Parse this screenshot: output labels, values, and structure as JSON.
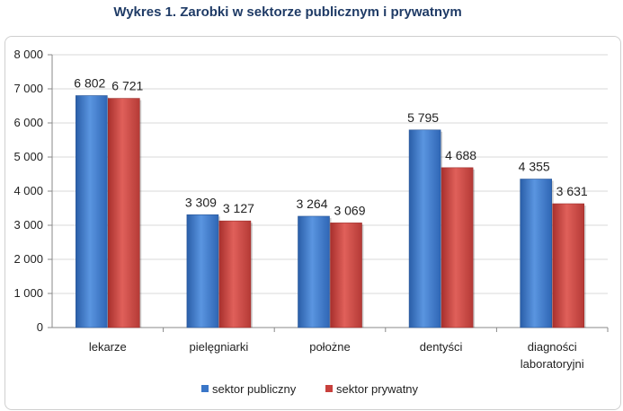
{
  "chart_data": {
    "type": "bar",
    "title": "Wykres 1. Zarobki w sektorze publicznym i prywatnym",
    "categories": [
      [
        "lekarze"
      ],
      [
        "pielęgniarki"
      ],
      [
        "położne"
      ],
      [
        "dentyści"
      ],
      [
        "diagności",
        "laboratoryjni"
      ]
    ],
    "series": [
      {
        "name": "sektor publiczny",
        "color": "#3a76c8",
        "values": [
          6802,
          3309,
          3264,
          5795,
          4355
        ],
        "labels": [
          "6 802",
          "3 309",
          "3 264",
          "5 795",
          "4 355"
        ]
      },
      {
        "name": "sektor prywatny",
        "color": "#c8403c",
        "values": [
          6721,
          3127,
          3069,
          4688,
          3631
        ],
        "labels": [
          "6 721",
          "3 127",
          "3 069",
          "4 688",
          "3 631"
        ]
      }
    ],
    "ylim": [
      0,
      8000
    ],
    "yticks": [
      0,
      1000,
      2000,
      3000,
      4000,
      5000,
      6000,
      7000,
      8000
    ],
    "ytick_labels": [
      "0",
      "1 000",
      "2 000",
      "3 000",
      "4 000",
      "5 000",
      "6 000",
      "7 000",
      "8 000"
    ],
    "grid": true,
    "legend": "bottom"
  }
}
